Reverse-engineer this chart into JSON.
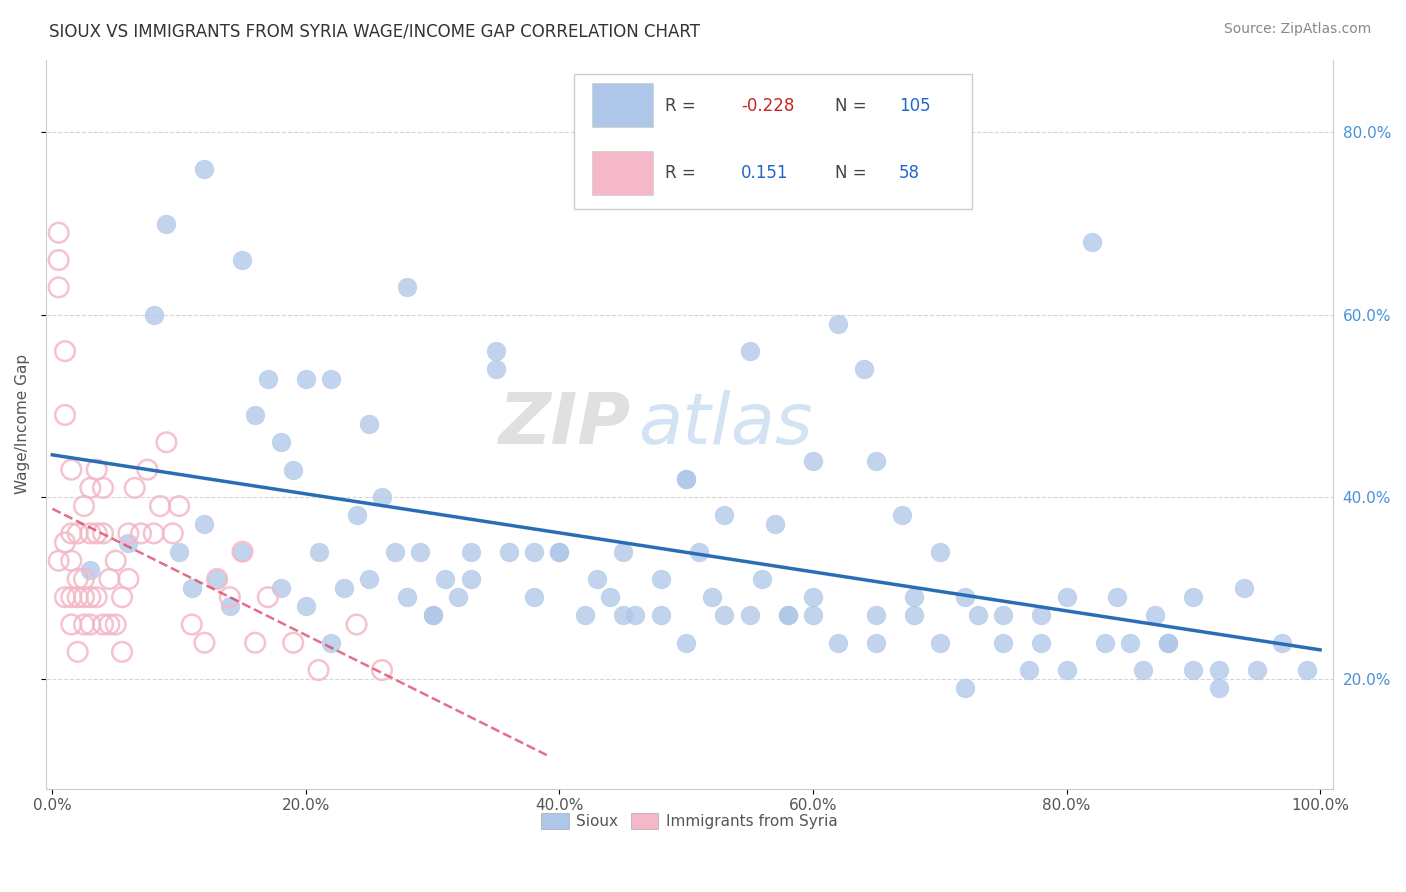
{
  "title": "SIOUX VS IMMIGRANTS FROM SYRIA WAGE/INCOME GAP CORRELATION CHART",
  "source": "Source: ZipAtlas.com",
  "ylabel": "Wage/Income Gap",
  "ytick_labels": [
    "20.0%",
    "40.0%",
    "60.0%",
    "80.0%"
  ],
  "ytick_vals": [
    0.2,
    0.4,
    0.6,
    0.8
  ],
  "xtick_labels": [
    "0.0%",
    "20.0%",
    "40.0%",
    "60.0%",
    "80.0%",
    "100.0%"
  ],
  "xtick_vals": [
    0.0,
    0.2,
    0.4,
    0.6,
    0.8,
    1.0
  ],
  "legend_sioux_r": "-0.228",
  "legend_sioux_n": "105",
  "legend_syria_r": "0.151",
  "legend_syria_n": "58",
  "sioux_color": "#aec6e8",
  "syria_color": "#f4b8c8",
  "sioux_line_color": "#2a6db5",
  "syria_line_color": "#d94060",
  "syria_dash_color": "#e8a0b0",
  "watermark_zip": "ZIP",
  "watermark_atlas": "atlas",
  "xlim": [
    -0.005,
    1.01
  ],
  "ylim": [
    0.08,
    0.88
  ],
  "sioux_x": [
    0.03,
    0.06,
    0.08,
    0.09,
    0.1,
    0.11,
    0.12,
    0.13,
    0.14,
    0.15,
    0.16,
    0.17,
    0.18,
    0.19,
    0.2,
    0.21,
    0.22,
    0.23,
    0.24,
    0.25,
    0.26,
    0.27,
    0.28,
    0.29,
    0.3,
    0.31,
    0.32,
    0.33,
    0.35,
    0.36,
    0.38,
    0.4,
    0.42,
    0.44,
    0.45,
    0.46,
    0.48,
    0.5,
    0.51,
    0.53,
    0.55,
    0.57,
    0.58,
    0.6,
    0.62,
    0.64,
    0.65,
    0.67,
    0.68,
    0.7,
    0.72,
    0.73,
    0.75,
    0.77,
    0.78,
    0.8,
    0.82,
    0.84,
    0.85,
    0.87,
    0.88,
    0.9,
    0.92,
    0.94,
    0.95,
    0.97,
    0.99,
    0.12,
    0.15,
    0.18,
    0.2,
    0.22,
    0.25,
    0.28,
    0.3,
    0.33,
    0.35,
    0.38,
    0.4,
    0.43,
    0.45,
    0.48,
    0.5,
    0.52,
    0.55,
    0.58,
    0.6,
    0.62,
    0.65,
    0.68,
    0.7,
    0.72,
    0.75,
    0.78,
    0.8,
    0.83,
    0.86,
    0.88,
    0.9,
    0.92,
    0.5,
    0.53,
    0.56,
    0.6,
    0.65
  ],
  "sioux_y": [
    0.32,
    0.35,
    0.6,
    0.7,
    0.34,
    0.3,
    0.37,
    0.31,
    0.28,
    0.34,
    0.49,
    0.53,
    0.3,
    0.43,
    0.28,
    0.34,
    0.24,
    0.3,
    0.38,
    0.31,
    0.4,
    0.34,
    0.29,
    0.34,
    0.27,
    0.31,
    0.29,
    0.34,
    0.56,
    0.34,
    0.29,
    0.34,
    0.27,
    0.29,
    0.34,
    0.27,
    0.27,
    0.42,
    0.34,
    0.27,
    0.56,
    0.37,
    0.27,
    0.44,
    0.59,
    0.54,
    0.44,
    0.38,
    0.29,
    0.34,
    0.29,
    0.27,
    0.24,
    0.21,
    0.27,
    0.29,
    0.68,
    0.29,
    0.24,
    0.27,
    0.24,
    0.29,
    0.21,
    0.3,
    0.21,
    0.24,
    0.21,
    0.76,
    0.66,
    0.46,
    0.53,
    0.53,
    0.48,
    0.63,
    0.27,
    0.31,
    0.54,
    0.34,
    0.34,
    0.31,
    0.27,
    0.31,
    0.24,
    0.29,
    0.27,
    0.27,
    0.29,
    0.24,
    0.27,
    0.27,
    0.24,
    0.19,
    0.27,
    0.24,
    0.21,
    0.24,
    0.21,
    0.24,
    0.21,
    0.19,
    0.42,
    0.38,
    0.31,
    0.27,
    0.24
  ],
  "syria_x": [
    0.005,
    0.005,
    0.005,
    0.005,
    0.01,
    0.01,
    0.01,
    0.01,
    0.015,
    0.015,
    0.015,
    0.015,
    0.015,
    0.02,
    0.02,
    0.02,
    0.02,
    0.025,
    0.025,
    0.025,
    0.025,
    0.03,
    0.03,
    0.03,
    0.03,
    0.035,
    0.035,
    0.035,
    0.04,
    0.04,
    0.04,
    0.045,
    0.045,
    0.05,
    0.05,
    0.055,
    0.055,
    0.06,
    0.06,
    0.065,
    0.07,
    0.075,
    0.08,
    0.085,
    0.09,
    0.095,
    0.1,
    0.11,
    0.12,
    0.13,
    0.14,
    0.15,
    0.16,
    0.17,
    0.19,
    0.21,
    0.24,
    0.26
  ],
  "syria_y": [
    0.33,
    0.63,
    0.66,
    0.69,
    0.29,
    0.35,
    0.49,
    0.56,
    0.26,
    0.29,
    0.33,
    0.36,
    0.43,
    0.23,
    0.29,
    0.31,
    0.36,
    0.26,
    0.29,
    0.31,
    0.39,
    0.26,
    0.29,
    0.36,
    0.41,
    0.36,
    0.29,
    0.43,
    0.26,
    0.36,
    0.41,
    0.26,
    0.31,
    0.26,
    0.33,
    0.23,
    0.29,
    0.31,
    0.36,
    0.41,
    0.36,
    0.43,
    0.36,
    0.39,
    0.46,
    0.36,
    0.39,
    0.26,
    0.24,
    0.31,
    0.29,
    0.34,
    0.24,
    0.29,
    0.24,
    0.21,
    0.26,
    0.21
  ]
}
